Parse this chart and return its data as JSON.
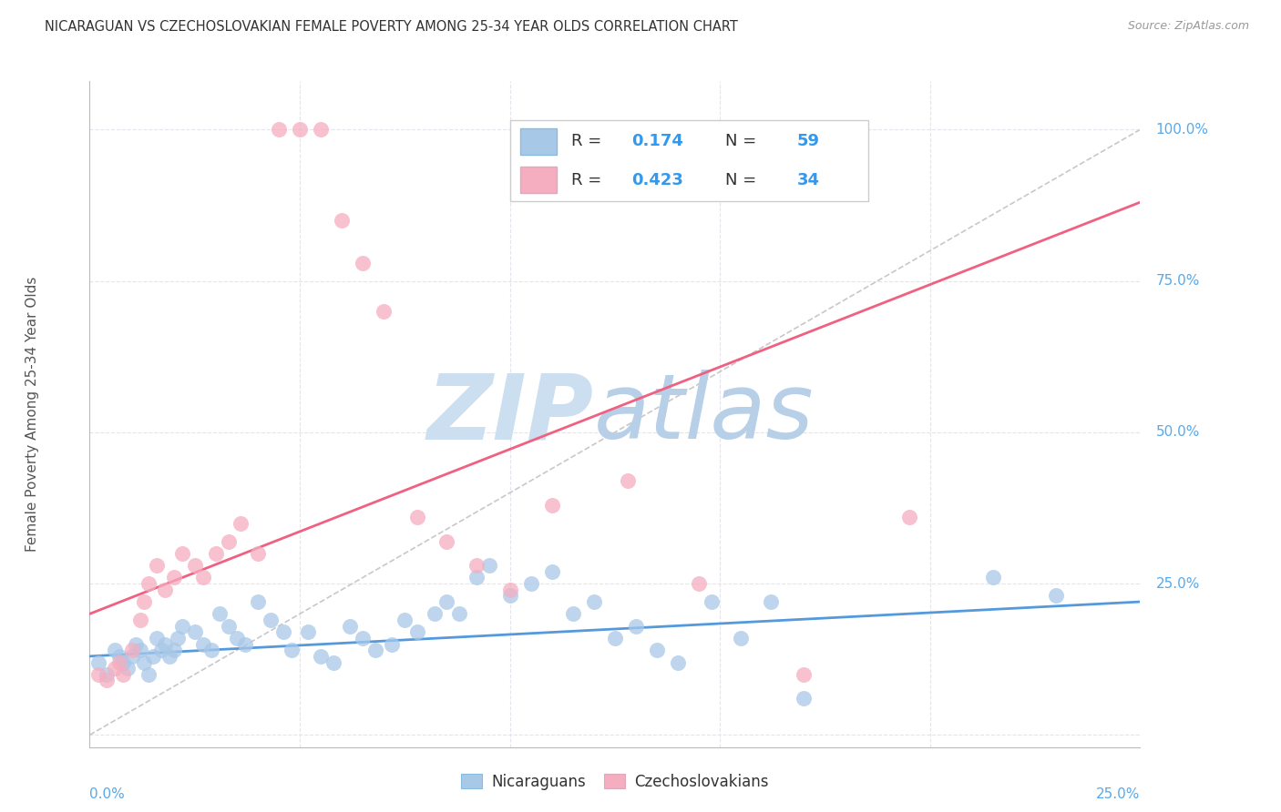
{
  "title": "NICARAGUAN VS CZECHOSLOVAKIAN FEMALE POVERTY AMONG 25-34 YEAR OLDS CORRELATION CHART",
  "source_text": "Source: ZipAtlas.com",
  "ylabel": "Female Poverty Among 25-34 Year Olds",
  "ytick_values": [
    0.0,
    0.25,
    0.5,
    0.75,
    1.0
  ],
  "xlim": [
    0.0,
    0.25
  ],
  "ylim": [
    -0.02,
    1.08
  ],
  "legend_blue_r": "0.174",
  "legend_blue_n": "59",
  "legend_pink_r": "0.423",
  "legend_pink_n": "34",
  "blue_color": "#a8c8e8",
  "pink_color": "#f5adc0",
  "blue_line_color": "#5599dd",
  "pink_line_color": "#f06080",
  "ref_line_color": "#c8c8cc",
  "blue_scatter_x": [
    0.002,
    0.004,
    0.006,
    0.007,
    0.008,
    0.009,
    0.01,
    0.011,
    0.012,
    0.013,
    0.014,
    0.015,
    0.016,
    0.017,
    0.018,
    0.019,
    0.02,
    0.021,
    0.022,
    0.025,
    0.027,
    0.029,
    0.031,
    0.033,
    0.035,
    0.037,
    0.04,
    0.043,
    0.046,
    0.048,
    0.052,
    0.055,
    0.058,
    0.062,
    0.065,
    0.068,
    0.072,
    0.075,
    0.078,
    0.082,
    0.085,
    0.088,
    0.092,
    0.095,
    0.1,
    0.105,
    0.11,
    0.115,
    0.12,
    0.125,
    0.13,
    0.135,
    0.14,
    0.148,
    0.155,
    0.162,
    0.17,
    0.215,
    0.23
  ],
  "blue_scatter_y": [
    0.12,
    0.1,
    0.14,
    0.13,
    0.12,
    0.11,
    0.13,
    0.15,
    0.14,
    0.12,
    0.1,
    0.13,
    0.16,
    0.14,
    0.15,
    0.13,
    0.14,
    0.16,
    0.18,
    0.17,
    0.15,
    0.14,
    0.2,
    0.18,
    0.16,
    0.15,
    0.22,
    0.19,
    0.17,
    0.14,
    0.17,
    0.13,
    0.12,
    0.18,
    0.16,
    0.14,
    0.15,
    0.19,
    0.17,
    0.2,
    0.22,
    0.2,
    0.26,
    0.28,
    0.23,
    0.25,
    0.27,
    0.2,
    0.22,
    0.16,
    0.18,
    0.14,
    0.12,
    0.22,
    0.16,
    0.22,
    0.06,
    0.26,
    0.23
  ],
  "pink_scatter_x": [
    0.002,
    0.004,
    0.006,
    0.007,
    0.008,
    0.01,
    0.012,
    0.013,
    0.014,
    0.016,
    0.018,
    0.02,
    0.022,
    0.025,
    0.027,
    0.03,
    0.033,
    0.036,
    0.04,
    0.045,
    0.05,
    0.055,
    0.06,
    0.065,
    0.07,
    0.078,
    0.085,
    0.092,
    0.1,
    0.11,
    0.128,
    0.145,
    0.17,
    0.195
  ],
  "pink_scatter_y": [
    0.1,
    0.09,
    0.11,
    0.12,
    0.1,
    0.14,
    0.19,
    0.22,
    0.25,
    0.28,
    0.24,
    0.26,
    0.3,
    0.28,
    0.26,
    0.3,
    0.32,
    0.35,
    0.3,
    1.0,
    1.0,
    1.0,
    0.85,
    0.78,
    0.7,
    0.36,
    0.32,
    0.28,
    0.24,
    0.38,
    0.42,
    0.25,
    0.1,
    0.36
  ],
  "blue_line_x0": 0.0,
  "blue_line_x1": 0.25,
  "blue_line_y0": 0.13,
  "blue_line_y1": 0.22,
  "pink_line_x0": 0.0,
  "pink_line_x1": 0.25,
  "pink_line_y0": 0.2,
  "pink_line_y1": 0.88,
  "background_color": "#ffffff",
  "grid_color": "#e4e4ec",
  "title_color": "#333333",
  "tick_color": "#55aaee",
  "watermark_zip_color": "#ccdff0",
  "watermark_atlas_color": "#b8cfe8"
}
